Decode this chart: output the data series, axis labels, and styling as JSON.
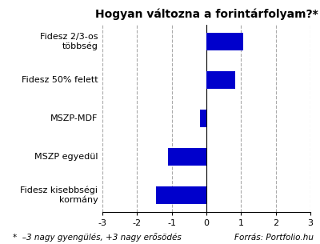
{
  "title": "Hogyan változna a forintárfolyam?*",
  "categories": [
    "Fidesz 2/3-os\ntöbbség",
    "Fidesz 50% felett",
    "MSZP-MDF",
    "MSZP egyedül",
    "Fidesz kisebbségi\nkormány"
  ],
  "values": [
    1.05,
    0.82,
    -0.18,
    -1.1,
    -1.45
  ],
  "bar_color": "#0000cc",
  "xlim": [
    -3,
    3
  ],
  "xticks": [
    -3,
    -2,
    -1,
    0,
    1,
    2,
    3
  ],
  "footnote_left": "*  –3 nagy gyengülés, +3 nagy erősödés",
  "footnote_right": "Forrás: Portfolio.hu",
  "background_color": "#ffffff",
  "plot_bg_color": "#ffffff",
  "grid_color": "#aaaaaa",
  "title_fontsize": 10,
  "tick_fontsize": 8,
  "label_fontsize": 8,
  "footnote_fontsize": 7.5,
  "bar_height": 0.45
}
